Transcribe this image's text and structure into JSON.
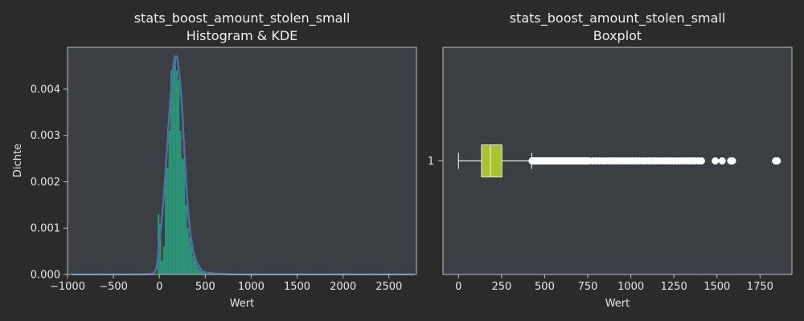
{
  "colors": {
    "figure_bg": "#2b2b2b",
    "axes_bg": "#3b3e42",
    "spine": "#bdbdbd",
    "hist_fill": "#2a9d7c",
    "kde_line": "#4a6fa5",
    "box_fill": "#a8c32b",
    "box_edge": "#e8e8e8",
    "flier": "#ffffff",
    "text": "#e6e6e6"
  },
  "chart_data": [
    {
      "type": "histogram+kde",
      "title_line1": "stats_boost_amount_stolen_small",
      "title_line2": "Histogram & KDE",
      "xlabel": "Wert",
      "ylabel": "Dichte",
      "xlim": [
        -1000,
        2800
      ],
      "ylim": [
        0,
        0.0049
      ],
      "xticks": [
        -1000,
        -500,
        0,
        500,
        1000,
        1500,
        2000,
        2500
      ],
      "yticks": [
        0.0,
        0.001,
        0.002,
        0.003,
        0.004
      ],
      "ytick_labels": [
        "0.000",
        "0.001",
        "0.002",
        "0.003",
        "0.004"
      ],
      "bins": [
        {
          "x0": -20,
          "x1": 0,
          "density": 0.0013
        },
        {
          "x0": 0,
          "x1": 20,
          "density": 0.0011
        },
        {
          "x0": 20,
          "x1": 40,
          "density": 0.0003
        },
        {
          "x0": 40,
          "x1": 60,
          "density": 0.0006
        },
        {
          "x0": 60,
          "x1": 80,
          "density": 0.0023
        },
        {
          "x0": 80,
          "x1": 100,
          "density": 0.0023
        },
        {
          "x0": 100,
          "x1": 120,
          "density": 0.0031
        },
        {
          "x0": 120,
          "x1": 140,
          "density": 0.0044
        },
        {
          "x0": 140,
          "x1": 160,
          "density": 0.0044
        },
        {
          "x0": 160,
          "x1": 180,
          "density": 0.0047
        },
        {
          "x0": 180,
          "x1": 200,
          "density": 0.0044
        },
        {
          "x0": 200,
          "x1": 220,
          "density": 0.0042
        },
        {
          "x0": 220,
          "x1": 240,
          "density": 0.0031
        },
        {
          "x0": 240,
          "x1": 260,
          "density": 0.0025
        },
        {
          "x0": 260,
          "x1": 280,
          "density": 0.0025
        },
        {
          "x0": 280,
          "x1": 300,
          "density": 0.0015
        },
        {
          "x0": 300,
          "x1": 320,
          "density": 0.001
        },
        {
          "x0": 320,
          "x1": 340,
          "density": 0.0008
        },
        {
          "x0": 340,
          "x1": 360,
          "density": 0.0006
        },
        {
          "x0": 360,
          "x1": 380,
          "density": 0.0004
        },
        {
          "x0": 380,
          "x1": 400,
          "density": 0.0003
        },
        {
          "x0": 400,
          "x1": 420,
          "density": 0.0002
        },
        {
          "x0": 420,
          "x1": 440,
          "density": 0.00012
        },
        {
          "x0": 440,
          "x1": 460,
          "density": 8e-05
        },
        {
          "x0": 460,
          "x1": 480,
          "density": 5e-05
        },
        {
          "x0": 480,
          "x1": 500,
          "density": 3e-05
        }
      ],
      "kde": [
        [
          -950,
          0.0
        ],
        [
          -500,
          0.0
        ],
        [
          -200,
          0.0
        ],
        [
          -50,
          5e-05
        ],
        [
          0,
          0.0007
        ],
        [
          40,
          0.0015
        ],
        [
          80,
          0.0026
        ],
        [
          120,
          0.0038
        ],
        [
          160,
          0.0046
        ],
        [
          180,
          0.0047
        ],
        [
          200,
          0.0046
        ],
        [
          240,
          0.0038
        ],
        [
          280,
          0.0024
        ],
        [
          320,
          0.0012
        ],
        [
          360,
          0.0006
        ],
        [
          400,
          0.0003
        ],
        [
          450,
          0.00012
        ],
        [
          500,
          5e-05
        ],
        [
          700,
          1e-05
        ],
        [
          1000,
          0.0
        ],
        [
          2770,
          0.0
        ]
      ]
    },
    {
      "type": "boxplot",
      "title_line1": "stats_boost_amount_stolen_small",
      "title_line2": "Boxplot",
      "xlabel": "Wert",
      "category_label": "1",
      "xlim": [
        -90,
        1935
      ],
      "xticks": [
        0,
        250,
        500,
        750,
        1000,
        1250,
        1500,
        1750
      ],
      "whisker_low": 0,
      "q1": 133,
      "median": 185,
      "q3": 252,
      "whisker_high": 425,
      "fliers": [
        1490,
        1530,
        1580,
        1590,
        1840,
        1850
      ]
    }
  ]
}
